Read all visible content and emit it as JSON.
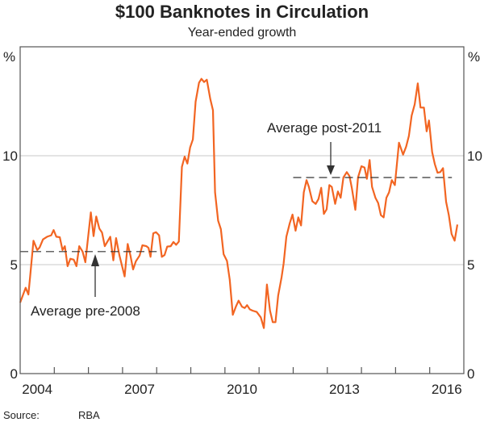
{
  "chart_data": {
    "type": "line",
    "title": "$100 Banknotes in Circulation",
    "subtitle": "Year-ended growth",
    "ylabel_left": "%",
    "ylabel_right": "%",
    "ylim": [
      0,
      15
    ],
    "yticks": [
      0,
      5,
      10
    ],
    "xlim": [
      2004,
      2017
    ],
    "xticks_labels": [
      "2004",
      "2007",
      "2010",
      "2013",
      "2016"
    ],
    "grid": true,
    "source": "Source:",
    "source_value": "RBA",
    "colors": {
      "series": "#f26522",
      "grid": "#c8c8c8",
      "axis": "#555555",
      "reference": "#333333"
    },
    "series": [
      {
        "name": "$100 banknotes year-ended growth",
        "x": [
          2004.0,
          2004.16,
          2004.24,
          2004.29,
          2004.39,
          2004.5,
          2004.57,
          2004.67,
          2004.79,
          2004.91,
          2004.98,
          2005.06,
          2005.16,
          2005.24,
          2005.31,
          2005.39,
          2005.47,
          2005.57,
          2005.65,
          2005.73,
          2005.83,
          2005.91,
          2006.07,
          2006.15,
          2006.23,
          2006.32,
          2006.4,
          2006.48,
          2006.64,
          2006.73,
          2006.81,
          2006.91,
          2007.06,
          2007.15,
          2007.23,
          2007.31,
          2007.39,
          2007.5,
          2007.58,
          2007.7,
          2007.76,
          2007.82,
          2007.9,
          2007.98,
          2008.07,
          2008.15,
          2008.23,
          2008.31,
          2008.41,
          2008.49,
          2008.57,
          2008.65,
          2008.74,
          2008.82,
          2008.9,
          2008.98,
          2009.06,
          2009.14,
          2009.24,
          2009.31,
          2009.39,
          2009.47,
          2009.57,
          2009.65,
          2009.71,
          2009.8,
          2009.88,
          2009.96,
          2010.06,
          2010.14,
          2010.23,
          2010.32,
          2010.4,
          2010.5,
          2010.58,
          2010.65,
          2010.73,
          2010.81,
          2010.93,
          2011.05,
          2011.14,
          2011.23,
          2011.32,
          2011.4,
          2011.48,
          2011.56,
          2011.66,
          2011.72,
          2011.8,
          2011.9,
          2011.98,
          2012.07,
          2012.15,
          2012.23,
          2012.31,
          2012.39,
          2012.46,
          2012.56,
          2012.66,
          2012.74,
          2012.82,
          2012.9,
          2012.98,
          2013.06,
          2013.13,
          2013.23,
          2013.31,
          2013.39,
          2013.47,
          2013.57,
          2013.65,
          2013.72,
          2013.82,
          2013.9,
          2014.0,
          2014.09,
          2014.16,
          2014.24,
          2014.31,
          2014.41,
          2014.49,
          2014.57,
          2014.65,
          2014.73,
          2014.81,
          2014.89,
          2014.98,
          2015.1,
          2015.22,
          2015.31,
          2015.39,
          2015.47,
          2015.56,
          2015.65,
          2015.73,
          2015.83,
          2015.91,
          2015.98,
          2016.07,
          2016.15,
          2016.23,
          2016.31,
          2016.39,
          2016.48,
          2016.56,
          2016.64,
          2016.73,
          2016.81
        ],
        "values": [
          3.26,
          3.94,
          3.63,
          4.43,
          6.1,
          5.67,
          5.79,
          6.16,
          6.28,
          6.35,
          6.59,
          6.28,
          6.26,
          5.67,
          5.85,
          4.93,
          5.27,
          5.23,
          4.93,
          5.85,
          5.6,
          5.11,
          7.4,
          6.31,
          7.21,
          6.65,
          6.47,
          5.85,
          6.28,
          5.2,
          6.22,
          5.42,
          4.46,
          5.95,
          5.42,
          4.78,
          5.15,
          5.42,
          5.89,
          5.85,
          5.77,
          5.36,
          6.44,
          6.49,
          6.35,
          5.36,
          5.44,
          5.83,
          5.85,
          6.04,
          5.91,
          6.06,
          9.49,
          9.96,
          9.64,
          10.38,
          10.75,
          12.48,
          13.35,
          13.53,
          13.38,
          13.49,
          12.6,
          12.09,
          8.32,
          7.02,
          6.63,
          5.48,
          5.17,
          4.31,
          2.7,
          3.07,
          3.35,
          3.07,
          3.01,
          3.14,
          2.95,
          2.89,
          2.83,
          2.58,
          2.09,
          4.09,
          2.89,
          2.36,
          2.36,
          3.57,
          4.43,
          5.05,
          6.28,
          6.9,
          7.3,
          6.56,
          7.17,
          6.8,
          8.32,
          8.88,
          8.57,
          7.91,
          7.79,
          8.01,
          8.53,
          7.33,
          7.54,
          8.65,
          8.57,
          7.79,
          8.36,
          8.07,
          9.0,
          9.25,
          9.06,
          8.51,
          7.52,
          9.0,
          9.52,
          9.46,
          8.94,
          9.8,
          8.57,
          8.07,
          7.83,
          7.27,
          7.17,
          8.07,
          8.32,
          8.88,
          8.65,
          10.6,
          10.05,
          10.42,
          10.91,
          11.84,
          12.36,
          13.32,
          12.21,
          12.21,
          11.12,
          11.62,
          10.17,
          9.62,
          9.22,
          9.25,
          9.43,
          7.89,
          7.27,
          6.41,
          6.1,
          6.84
        ]
      }
    ],
    "reference_lines": [
      {
        "label": "Average pre-2008",
        "value": 5.6,
        "x_range": [
          2004.0,
          2008.0
        ]
      },
      {
        "label": "Average post-2011",
        "value": 9.0,
        "x_range": [
          2012.0,
          2016.65
        ]
      }
    ]
  }
}
